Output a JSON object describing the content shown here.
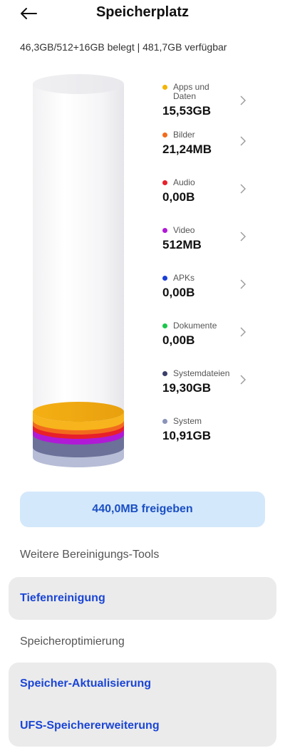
{
  "header": {
    "title": "Speicherplatz",
    "summary": "46,3GB/512+16GB belegt | 481,7GB verfügbar"
  },
  "legend": [
    {
      "label": "Apps und Daten",
      "value": "15,53GB",
      "color": "#f4b400",
      "chevron": true
    },
    {
      "label": "Bilder",
      "value": "21,24MB",
      "color": "#f26b1d",
      "chevron": true
    },
    {
      "label": "Audio",
      "value": "0,00B",
      "color": "#e8202a",
      "chevron": true
    },
    {
      "label": "Video",
      "value": "512MB",
      "color": "#b01ad6",
      "chevron": true
    },
    {
      "label": "APKs",
      "value": "0,00B",
      "color": "#1a3fd6",
      "chevron": true
    },
    {
      "label": "Dokumente",
      "value": "0,00B",
      "color": "#1cc64a",
      "chevron": true
    },
    {
      "label": "Systemdateien",
      "value": "19,30GB",
      "color": "#3a3f6a",
      "chevron": true
    },
    {
      "label": "System",
      "value": "10,91GB",
      "color": "#8a93b8",
      "chevron": false
    }
  ],
  "free_button": {
    "label": "440,0MB freigeben"
  },
  "cleanup": {
    "title": "Weitere Bereinigungs-Tools",
    "items": [
      "Tiefenreinigung"
    ]
  },
  "optimization": {
    "title": "Speicheroptimierung",
    "items": [
      "Speicher-Aktualisierung",
      "UFS-Speichererweiterung"
    ]
  },
  "icons": {
    "back": "arrow-left-icon",
    "chevron": "chevron-right-icon"
  }
}
